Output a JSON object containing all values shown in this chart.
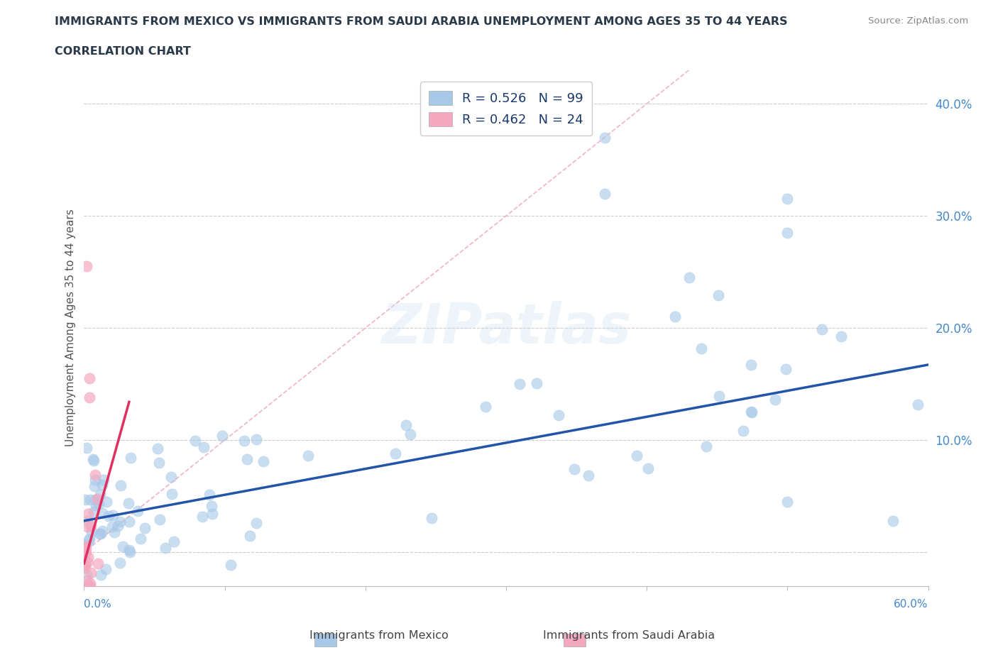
{
  "title_line1": "IMMIGRANTS FROM MEXICO VS IMMIGRANTS FROM SAUDI ARABIA UNEMPLOYMENT AMONG AGES 35 TO 44 YEARS",
  "title_line2": "CORRELATION CHART",
  "source": "Source: ZipAtlas.com",
  "ylabel": "Unemployment Among Ages 35 to 44 years",
  "xlim": [
    0.0,
    0.6
  ],
  "ylim": [
    -0.03,
    0.43
  ],
  "mexico_color": "#a8c8e8",
  "saudi_color": "#f4a8c0",
  "mexico_line_color": "#2255aa",
  "saudi_line_color": "#e03060",
  "diag_color": "#f0a0b0",
  "R_mexico": 0.526,
  "N_mexico": 99,
  "R_saudi": 0.462,
  "N_saudi": 24,
  "grid_color": "#cccccc",
  "ytick_vals": [
    0.0,
    0.1,
    0.2,
    0.3,
    0.4
  ],
  "background_color": "#ffffff",
  "watermark": "ZIPatlas",
  "mexico_slope": 0.232,
  "mexico_intercept": 0.028,
  "saudi_slope": 4.5,
  "saudi_intercept": -0.01
}
